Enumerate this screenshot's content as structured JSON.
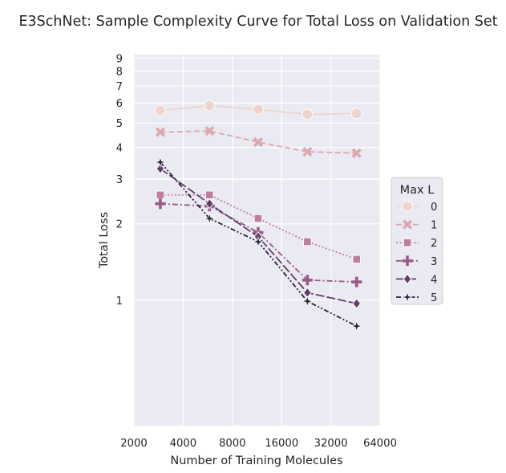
{
  "chart_data": {
    "type": "line",
    "title": "E3SchNet: Sample Complexity Curve for Total Loss on Validation Set",
    "xlabel": "Number of Training Molecules",
    "ylabel": "Total Loss",
    "xscale": "log2",
    "yscale": "log",
    "xlim": [
      2000,
      64000
    ],
    "ylim": [
      0.32,
      9.3
    ],
    "x_ticks": [
      2000,
      4000,
      8000,
      16000,
      32000,
      64000
    ],
    "x_tick_labels": [
      "2000",
      "4000",
      "8000",
      "16000",
      "32000",
      "64000"
    ],
    "y_ticks": [
      1,
      2,
      3,
      4,
      5,
      6,
      7,
      8,
      9
    ],
    "y_tick_labels": [
      "1",
      "2",
      "3",
      "4",
      "5",
      "6",
      "7",
      "8",
      "9"
    ],
    "grid": true,
    "x": [
      2900,
      5800,
      11500,
      23000,
      46000
    ],
    "legend": {
      "title": "Max L",
      "placement": "center-right"
    },
    "series": [
      {
        "name": "0",
        "color": "#eed4cf",
        "marker": "circle",
        "dash": "solid",
        "values": [
          5.6,
          5.85,
          5.65,
          5.4,
          5.45
        ]
      },
      {
        "name": "1",
        "color": "#dba8b0",
        "marker": "x",
        "dash": "dashed",
        "values": [
          4.6,
          4.65,
          4.2,
          3.85,
          3.8
        ]
      },
      {
        "name": "2",
        "color": "#c07d9f",
        "marker": "square",
        "dash": "dotted",
        "values": [
          2.6,
          2.6,
          2.1,
          1.7,
          1.45
        ]
      },
      {
        "name": "3",
        "color": "#995b86",
        "marker": "plus",
        "dash": "dashdot",
        "values": [
          2.4,
          2.35,
          1.85,
          1.2,
          1.18
        ]
      },
      {
        "name": "4",
        "color": "#633c69",
        "marker": "diamond",
        "dash": "longdash",
        "values": [
          3.3,
          2.4,
          1.78,
          1.07,
          0.97
        ]
      },
      {
        "name": "5",
        "color": "#2b1f3d",
        "marker": "star",
        "dash": "dashdotdot",
        "values": [
          3.5,
          2.1,
          1.7,
          0.99,
          0.79
        ]
      }
    ]
  }
}
